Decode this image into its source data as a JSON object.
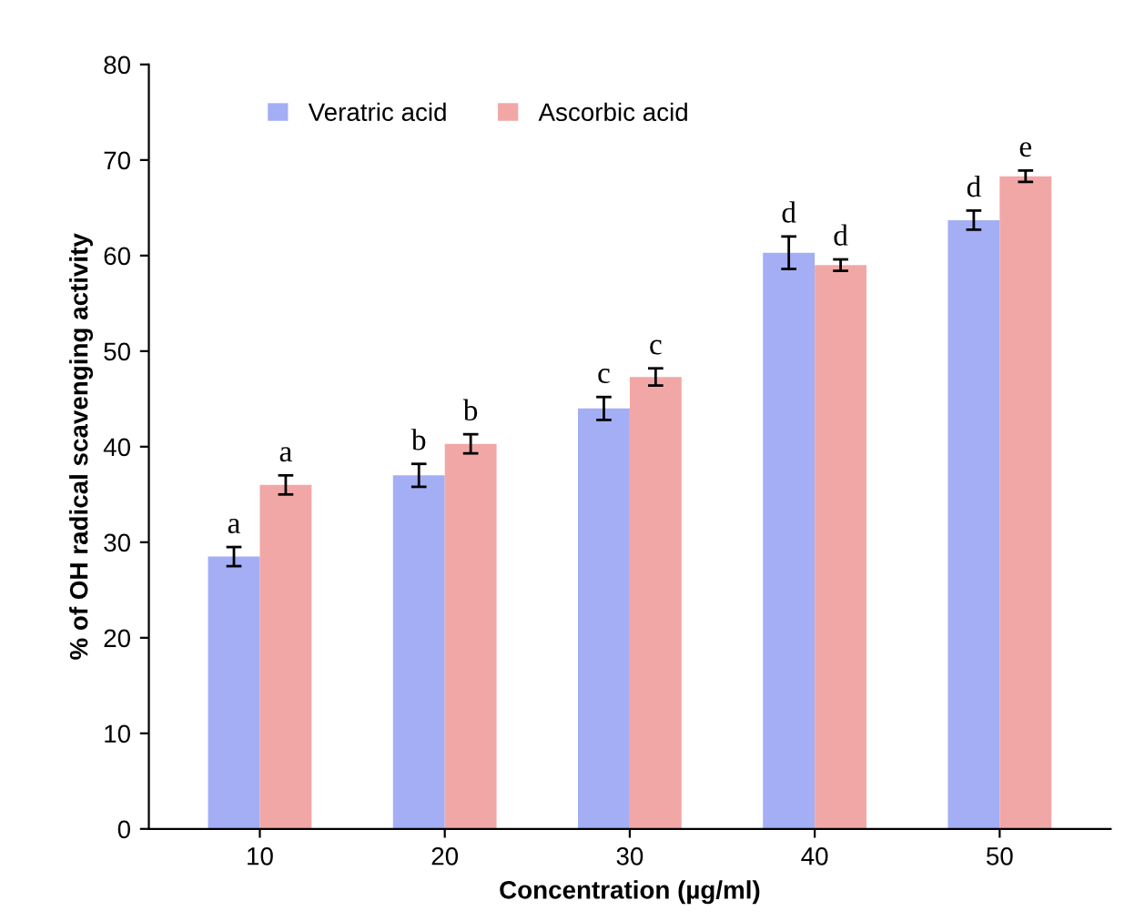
{
  "chart_data": {
    "type": "bar",
    "xlabel": "Concentration (µg/ml)",
    "ylabel": "% of OH radical scavenging activity",
    "categories": [
      "10",
      "20",
      "30",
      "40",
      "50"
    ],
    "series": [
      {
        "name": "Veratric acid",
        "color": "#a3aef5",
        "values": [
          28.5,
          37,
          44,
          60.3,
          63.7
        ],
        "errors": [
          1,
          1.2,
          1.2,
          1.7,
          1
        ]
      },
      {
        "name": "Ascorbic acid",
        "color": "#f2a7a7",
        "values": [
          36,
          40.3,
          47.3,
          59,
          68.3
        ],
        "errors": [
          1,
          1,
          0.9,
          0.6,
          0.6
        ]
      }
    ],
    "annotations": [
      {
        "text": "a",
        "x": "10",
        "y": 28.5
      },
      {
        "text": "a",
        "x": "10",
        "y": 36
      },
      {
        "text": "b",
        "x": "20",
        "y": 37
      },
      {
        "text": "b",
        "x": "20",
        "y": 40.3
      },
      {
        "text": "c",
        "x": "30",
        "y": 44
      },
      {
        "text": "c",
        "x": "30",
        "y": 47.3
      },
      {
        "text": "d",
        "x": "40",
        "y": 60.3
      },
      {
        "text": "d",
        "x": "40",
        "y": 59
      },
      {
        "text": "d",
        "x": "50",
        "y": 63.7
      },
      {
        "text": "e",
        "x": "50",
        "y": 68.3
      }
    ],
    "ylim": [
      0,
      80
    ],
    "yticks": [
      0,
      10,
      20,
      30,
      40,
      50,
      60,
      70,
      80
    ],
    "legend": "top left",
    "grid": false
  }
}
